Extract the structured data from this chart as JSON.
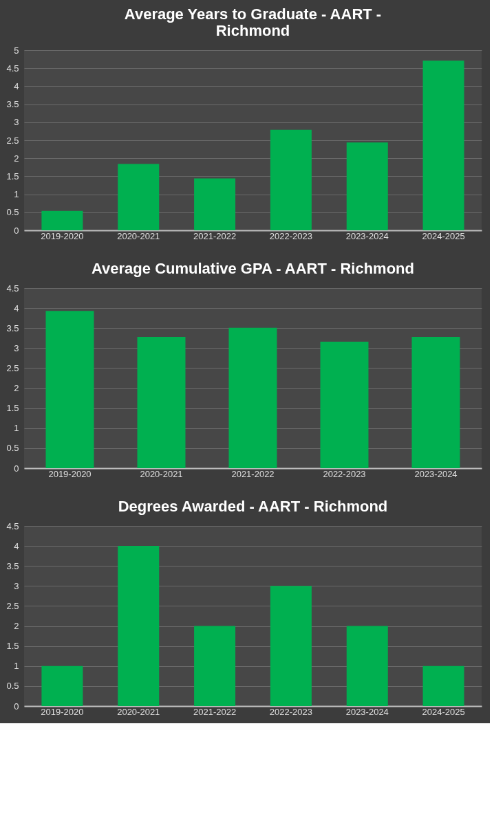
{
  "chart_data": [
    {
      "type": "bar",
      "title": "Average Years to Graduate - AART - Richmond",
      "categories": [
        "2019-2020",
        "2020-2021",
        "2021-2022",
        "2022-2023",
        "2023-2024",
        "2024-2025"
      ],
      "values": [
        0.54,
        1.84,
        1.44,
        2.79,
        2.44,
        4.71
      ],
      "color": "#00b050",
      "ylim": [
        0,
        5
      ],
      "yticks": [
        0,
        0.5,
        1,
        1.5,
        2,
        2.5,
        3,
        3.5,
        4,
        4.5,
        5
      ],
      "grid": "y"
    },
    {
      "type": "bar",
      "title": "Average Cumulative GPA - AART - Richmond",
      "categories": [
        "2019-2020",
        "2020-2021",
        "2021-2022",
        "2022-2023",
        "2023-2024"
      ],
      "values": [
        3.93,
        3.28,
        3.51,
        3.16,
        3.28
      ],
      "color": "#00b050",
      "ylim": [
        0,
        4.5
      ],
      "yticks": [
        0,
        0.5,
        1,
        1.5,
        2,
        2.5,
        3,
        3.5,
        4,
        4.5
      ],
      "grid": "y"
    },
    {
      "type": "bar",
      "title": "Degrees Awarded - AART - Richmond",
      "categories": [
        "2019-2020",
        "2020-2021",
        "2021-2022",
        "2022-2023",
        "2023-2024",
        "2024-2025"
      ],
      "values": [
        1,
        4,
        2,
        3,
        2,
        1
      ],
      "color": "#00b050",
      "ylim": [
        0,
        4.5
      ],
      "yticks": [
        0,
        0.5,
        1,
        1.5,
        2,
        2.5,
        3,
        3.5,
        4,
        4.5
      ],
      "grid": "y"
    }
  ]
}
